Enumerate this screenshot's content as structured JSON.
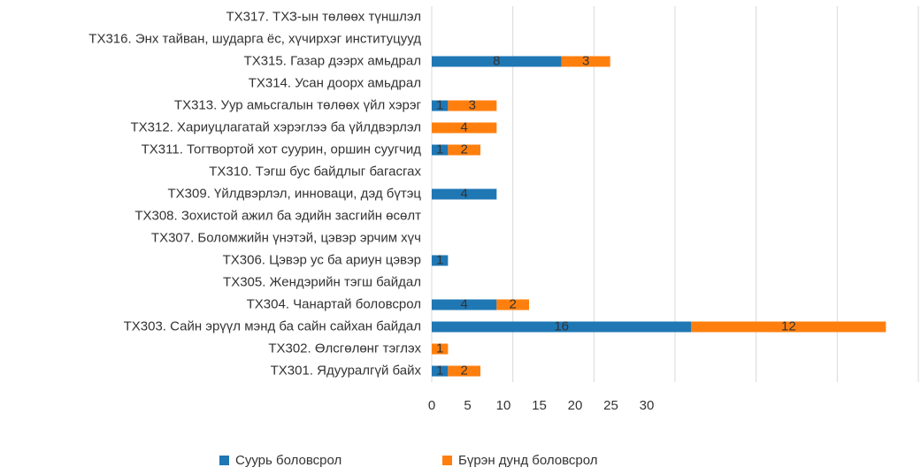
{
  "chart_data": {
    "type": "stacked-barh",
    "categories": [
      "ТХ317. ТХЗ-ын төлөөх түншлэл",
      "ТХ316. Энх тайван, шударга ёс, хүчирхэг институцууд",
      "ТХ315. Газар дээрх амьдрал",
      "ТХ314. Усан доорх амьдрал",
      "ТХ313. Уур амьсгалын төлөөх үйл хэрэг",
      "ТХ312. Хариуцлагатай хэрэглээ ба үйлдвэрлэл",
      "ТХ311. Тогтвортой хот суурин, оршин суугчид",
      "ТХ310. Тэгш бус байдлыг багасгах",
      "ТХ309. Үйлдвэрлэл, инноваци, дэд бүтэц",
      "ТХ308. Зохистой ажил ба эдийн засгийн өсөлт",
      "ТХ307. Боломжийн үнэтэй, цэвэр эрчим хүч",
      "ТХ306. Цэвэр ус ба ариун цэвэр",
      "ТХ305. Жендэрийн тэгш байдал",
      "ТХ304. Чанартай боловсрол",
      "ТХ303. Сайн эрүүл мэнд ба сайн сайхан байдал",
      "ТХ302. Өлсгөлөнг тэглэх",
      "ТХ301. Ядууралгүй байх"
    ],
    "series": [
      {
        "name": "Суурь боловсрол",
        "color": "#1f77b4",
        "values": [
          null,
          null,
          8,
          null,
          1,
          null,
          1,
          null,
          4,
          null,
          null,
          1,
          null,
          4,
          16,
          null,
          1
        ]
      },
      {
        "name": "Бүрэн дунд боловсрол",
        "color": "#ff7f0e",
        "values": [
          null,
          null,
          3,
          null,
          3,
          4,
          2,
          null,
          null,
          null,
          null,
          null,
          null,
          2,
          12,
          1,
          2
        ]
      }
    ],
    "xlim": [
      0,
      30
    ],
    "xticks": [
      0,
      5,
      10,
      15,
      20,
      25,
      30
    ],
    "grid": true,
    "legend": "bottom"
  }
}
